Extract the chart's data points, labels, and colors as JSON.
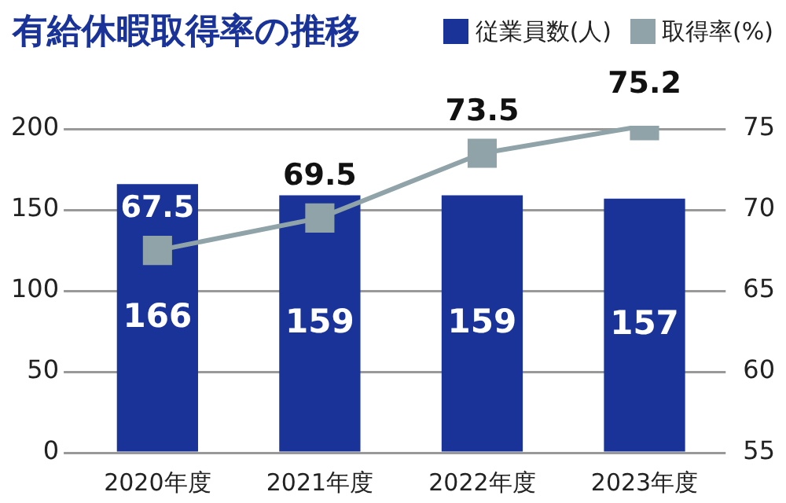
{
  "chart_data": {
    "type": "bar",
    "title": "有給休暇取得率の推移",
    "categories": [
      "2020年度",
      "2021年度",
      "2022年度",
      "2023年度"
    ],
    "series": [
      {
        "name": "従業員数(人)",
        "color": "#1a3399",
        "values": [
          166,
          159,
          159,
          157
        ]
      },
      {
        "name": "取得率(%)",
        "type": "line",
        "axis": "y2",
        "color": "#8fa3a8",
        "values": [
          67.5,
          69.5,
          73.5,
          75.2
        ]
      }
    ],
    "ylim": [
      0,
      202
    ],
    "yticks": [
      0,
      50,
      100,
      150,
      200
    ],
    "y2lim": [
      55,
      75.2
    ],
    "y2ticks": [
      55,
      60,
      65,
      70,
      75
    ],
    "grid": "y",
    "legend": "top right",
    "marker": "square",
    "data_labels": true
  }
}
